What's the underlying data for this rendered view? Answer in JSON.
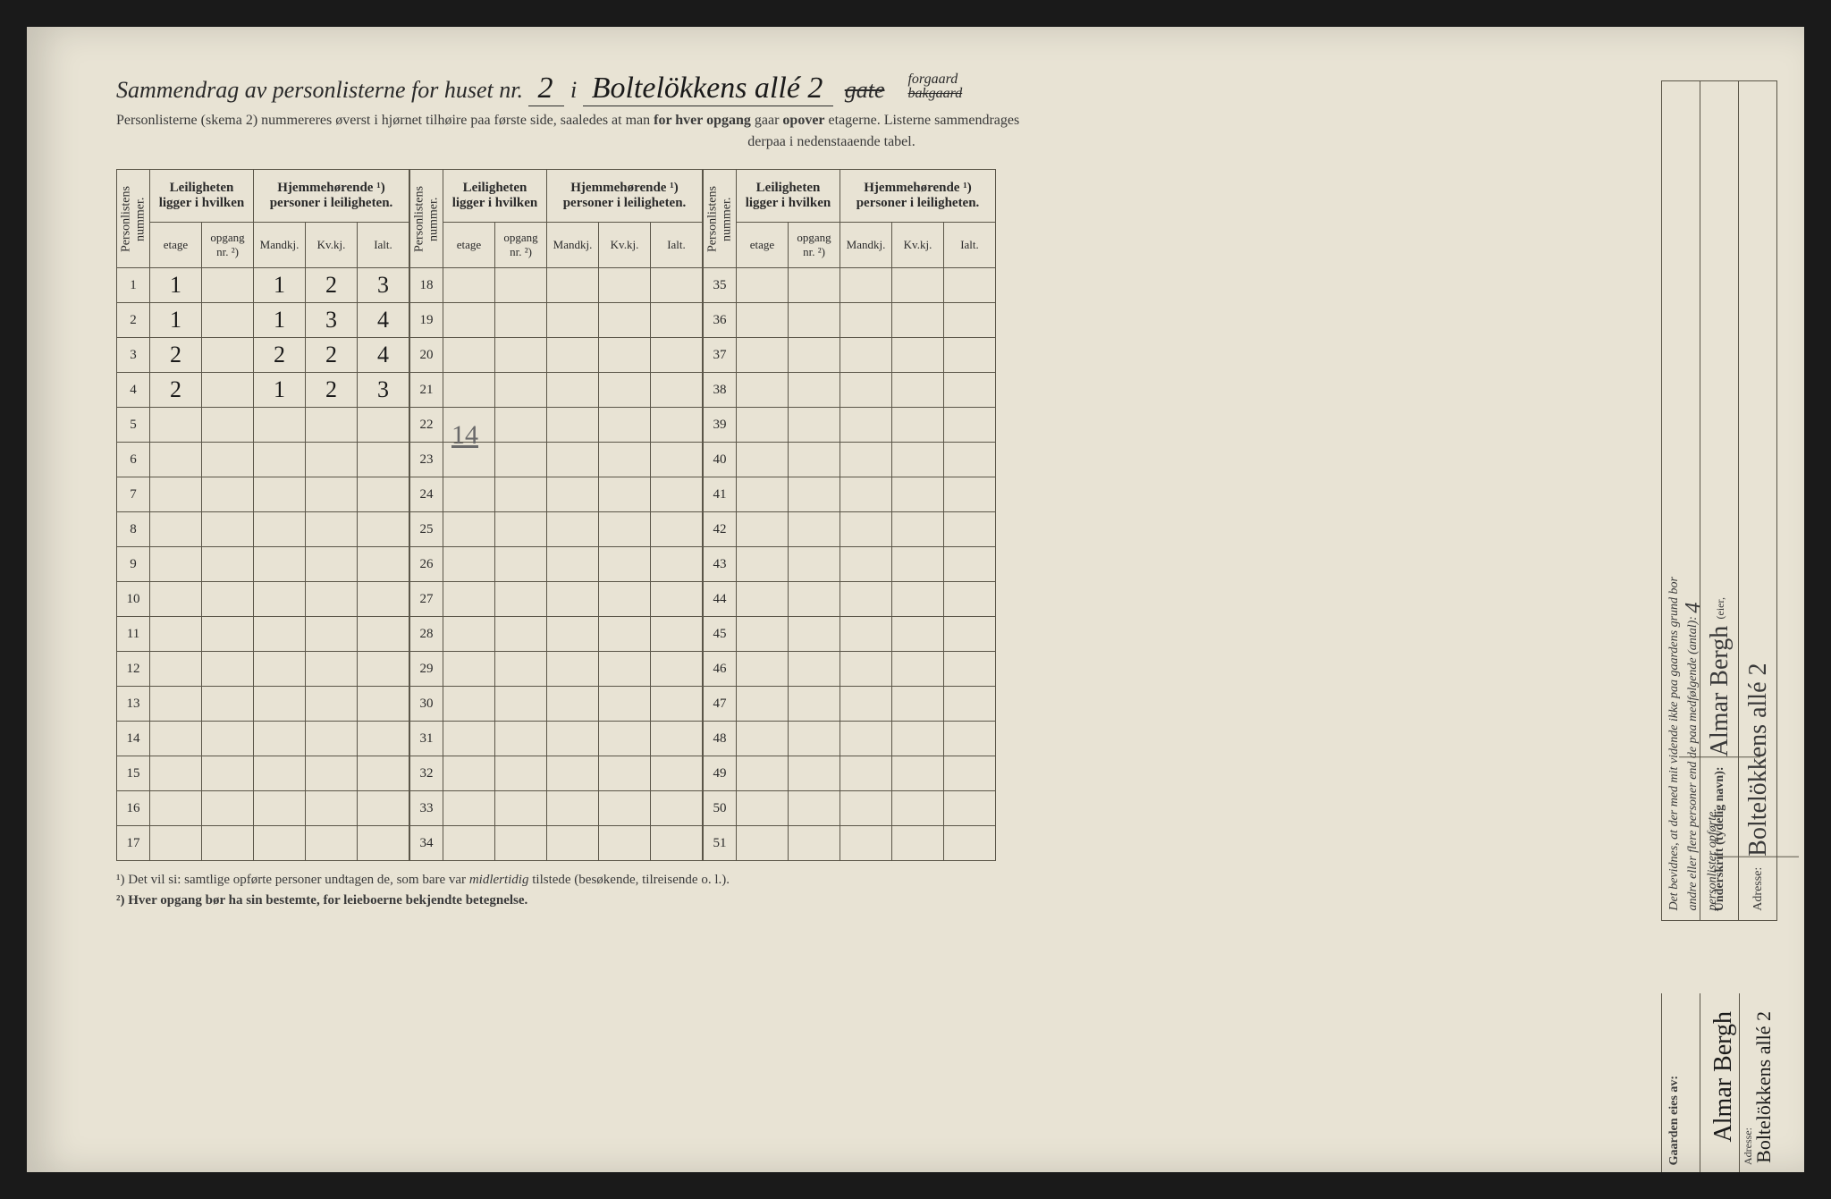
{
  "title": {
    "prefix": "Sammendrag av personlisterne for huset nr.",
    "huset_nr": "2",
    "i": "i",
    "street": "Boltelökkens allé 2",
    "gate_label": "gate",
    "forgaard": "forgaard",
    "bakgaard": "bakgaard"
  },
  "subtitle_line1": "Personlisterne (skema 2) nummereres øverst i hjørnet tilhøire paa første side, saaledes at man",
  "subtitle_bold": "for hver opgang",
  "subtitle_line1b": "gaar",
  "subtitle_bold2": "opover",
  "subtitle_line1c": "etagerne.   Listerne sammendrages",
  "subtitle_line2": "derpaa i nedenstaaende tabel.",
  "headers": {
    "personlistens": "Personlistens\nnummer.",
    "leiligheten": "Leiligheten\nligger i hvilken",
    "hjemme": "Hjemmehørende ¹)\npersoner i leiligheten.",
    "etage": "etage",
    "opgang": "opgang\nnr. ²)",
    "mandkj": "Mandkj.",
    "kvkj": "Kv.kj.",
    "ialt": "Ialt."
  },
  "rows_block1": [
    {
      "n": 1,
      "etage": "1",
      "opgang": "",
      "m": "1",
      "k": "2",
      "i": "3"
    },
    {
      "n": 2,
      "etage": "1",
      "opgang": "",
      "m": "1",
      "k": "3",
      "i": "4"
    },
    {
      "n": 3,
      "etage": "2",
      "opgang": "",
      "m": "2",
      "k": "2",
      "i": "4"
    },
    {
      "n": 4,
      "etage": "2",
      "opgang": "",
      "m": "1",
      "k": "2",
      "i": "3"
    },
    {
      "n": 5
    },
    {
      "n": 6
    },
    {
      "n": 7
    },
    {
      "n": 8
    },
    {
      "n": 9
    },
    {
      "n": 10
    },
    {
      "n": 11
    },
    {
      "n": 12
    },
    {
      "n": 13
    },
    {
      "n": 14
    },
    {
      "n": 15
    },
    {
      "n": 16
    },
    {
      "n": 17
    }
  ],
  "rows_block2": [
    {
      "n": 18
    },
    {
      "n": 19
    },
    {
      "n": 20
    },
    {
      "n": 21
    },
    {
      "n": 22
    },
    {
      "n": 23
    },
    {
      "n": 24
    },
    {
      "n": 25
    },
    {
      "n": 26
    },
    {
      "n": 27
    },
    {
      "n": 28
    },
    {
      "n": 29
    },
    {
      "n": 30
    },
    {
      "n": 31
    },
    {
      "n": 32
    },
    {
      "n": 33
    },
    {
      "n": 34
    }
  ],
  "rows_block3": [
    {
      "n": 35
    },
    {
      "n": 36
    },
    {
      "n": 37
    },
    {
      "n": 38
    },
    {
      "n": 39
    },
    {
      "n": 40
    },
    {
      "n": 41
    },
    {
      "n": 42
    },
    {
      "n": 43
    },
    {
      "n": 44
    },
    {
      "n": 45
    },
    {
      "n": 46
    },
    {
      "n": 47
    },
    {
      "n": 48
    },
    {
      "n": 49
    },
    {
      "n": 50
    },
    {
      "n": 51
    }
  ],
  "hw_total_14": "14",
  "footnotes": {
    "f1_pre": "¹) Det vil si: samtlige opførte personer undtagen de, som bare var ",
    "f1_i": "midlertidig",
    "f1_post": " tilstede (besøkende, tilreisende o. l.).",
    "f2": "²) Hver opgang bør ha sin bestemte, for leieboerne bekjendte betegnelse."
  },
  "right": {
    "bevidnes": "Det bevidnes, at der med mit vidende ikke paa gaardens grund bor",
    "andre": "andre eller flere personer end de paa medfølgende (antal):",
    "antal": "4",
    "personlister": "personlister opførte.",
    "underskrift_label": "Underskrift (tydelig navn):",
    "underskrift": "Almar Bergh",
    "eier": "(eier,",
    "etc": "etc.)",
    "adresse_label": "Adresse:",
    "adresse": "Boltelökkens allé 2"
  },
  "bottom_right": {
    "gaarden": "Gaarden eies av:",
    "name": "Almar Bergh",
    "adresse_label": "Adresse:",
    "adresse": "Boltelökkens allé 2"
  },
  "colors": {
    "paper": "#e8e3d4",
    "ink": "#2a2a2a",
    "rule": "#5a5548",
    "hw": "#1a1a1a",
    "pencil": "#6a6a6a"
  }
}
